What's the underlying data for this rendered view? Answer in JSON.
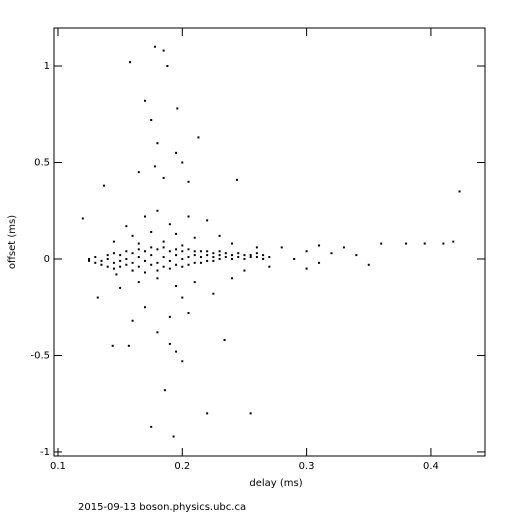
{
  "chart_data": {
    "type": "scatter",
    "x_label": "delay (ms)",
    "y_label": "offset (ms)",
    "footer": "2015-09-13 boson.physics.ubc.ca",
    "color": "#000000",
    "xlim": [
      0.0968,
      0.4435
    ],
    "ylim": [
      -1.021,
      1.197
    ],
    "xticks": [
      0.1,
      0.2,
      0.3,
      0.4
    ],
    "yticks": [
      -1,
      -0.5,
      0,
      0.5,
      1
    ],
    "grid": false,
    "x": [
      0.158,
      0.178,
      0.185,
      0.17,
      0.188,
      0.196,
      0.175,
      0.18,
      0.2,
      0.165,
      0.178,
      0.213,
      0.195,
      0.137,
      0.185,
      0.205,
      0.244,
      0.423,
      0.12,
      0.155,
      0.17,
      0.18,
      0.19,
      0.205,
      0.22,
      0.16,
      0.175,
      0.195,
      0.21,
      0.23,
      0.145,
      0.165,
      0.185,
      0.2,
      0.24,
      0.26,
      0.28,
      0.31,
      0.33,
      0.36,
      0.38,
      0.395,
      0.41,
      0.418,
      0.3,
      0.32,
      0.34,
      0.29,
      0.31,
      0.35,
      0.3,
      0.132,
      0.15,
      0.165,
      0.18,
      0.195,
      0.21,
      0.225,
      0.17,
      0.19,
      0.205,
      0.16,
      0.18,
      0.157,
      0.144,
      0.19,
      0.195,
      0.2,
      0.234,
      0.186,
      0.22,
      0.255,
      0.175,
      0.193,
      0.24,
      0.25,
      0.27,
      0.147,
      0.16,
      0.2,
      0.125,
      0.125,
      0.13,
      0.13,
      0.135,
      0.135,
      0.14,
      0.14,
      0.14,
      0.145,
      0.145,
      0.145,
      0.15,
      0.15,
      0.15,
      0.155,
      0.155,
      0.155,
      0.16,
      0.16,
      0.16,
      0.165,
      0.165,
      0.165,
      0.17,
      0.17,
      0.17,
      0.175,
      0.175,
      0.175,
      0.18,
      0.18,
      0.18,
      0.185,
      0.185,
      0.185,
      0.19,
      0.19,
      0.19,
      0.195,
      0.195,
      0.195,
      0.2,
      0.2,
      0.2,
      0.205,
      0.205,
      0.205,
      0.21,
      0.21,
      0.21,
      0.215,
      0.215,
      0.215,
      0.22,
      0.22,
      0.22,
      0.225,
      0.225,
      0.225,
      0.23,
      0.23,
      0.23,
      0.235,
      0.235,
      0.24,
      0.24,
      0.245,
      0.245,
      0.25,
      0.25,
      0.255,
      0.255,
      0.26,
      0.26,
      0.265,
      0.265,
      0.27
    ],
    "values": [
      1.02,
      1.1,
      1.08,
      0.82,
      1.0,
      0.78,
      0.72,
      0.6,
      0.5,
      0.45,
      0.48,
      0.63,
      0.55,
      0.38,
      0.42,
      0.4,
      0.41,
      0.35,
      0.21,
      0.17,
      0.22,
      0.25,
      0.18,
      0.22,
      0.2,
      0.12,
      0.14,
      0.13,
      0.11,
      0.12,
      0.09,
      0.08,
      0.09,
      0.07,
      0.08,
      0.06,
      0.06,
      0.07,
      0.06,
      0.08,
      0.08,
      0.08,
      0.08,
      0.09,
      0.04,
      0.03,
      0.02,
      0.0,
      -0.02,
      -0.03,
      -0.05,
      -0.2,
      -0.15,
      -0.12,
      -0.1,
      -0.14,
      -0.12,
      -0.18,
      -0.25,
      -0.3,
      -0.28,
      -0.32,
      -0.38,
      -0.45,
      -0.45,
      -0.44,
      -0.48,
      -0.53,
      -0.42,
      -0.68,
      -0.8,
      -0.8,
      -0.87,
      -0.92,
      -0.1,
      -0.06,
      -0.04,
      -0.08,
      -0.06,
      -0.2,
      -0.01,
      0.0,
      -0.02,
      0.01,
      -0.01,
      -0.03,
      0.0,
      -0.04,
      0.02,
      -0.02,
      0.03,
      -0.05,
      -0.01,
      0.02,
      -0.04,
      0.0,
      -0.03,
      0.04,
      -0.02,
      0.03,
      -0.06,
      0.01,
      -0.04,
      0.05,
      -0.01,
      0.04,
      -0.07,
      0.02,
      -0.03,
      0.06,
      -0.02,
      0.05,
      -0.06,
      0.01,
      -0.04,
      0.06,
      -0.01,
      0.04,
      -0.05,
      0.02,
      -0.03,
      0.05,
      0.0,
      0.04,
      -0.04,
      0.01,
      -0.03,
      0.05,
      0.02,
      -0.02,
      0.04,
      0.01,
      0.04,
      -0.02,
      0.02,
      -0.01,
      0.04,
      0.01,
      0.03,
      -0.01,
      0.02,
      0.0,
      0.04,
      0.01,
      0.03,
      0.02,
      0.0,
      0.03,
      0.01,
      0.02,
      0.0,
      0.02,
      0.01,
      0.01,
      0.03,
      0.02,
      0.0,
      0.01
    ]
  }
}
